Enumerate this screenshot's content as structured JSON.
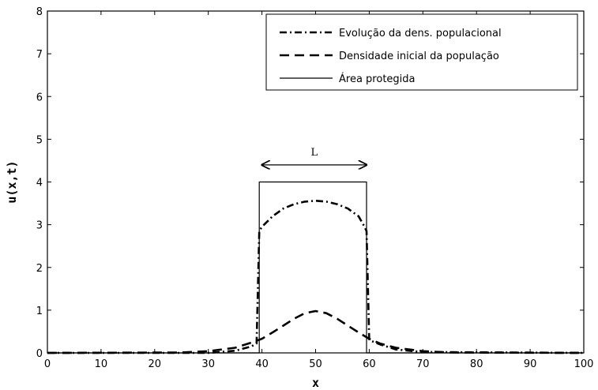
{
  "chart_data": {
    "type": "line",
    "title": "",
    "xlabel": "x",
    "ylabel": "u(x,t)",
    "xlim": [
      0,
      100
    ],
    "ylim": [
      0,
      8
    ],
    "x_ticks": [
      0,
      10,
      20,
      30,
      40,
      50,
      60,
      70,
      80,
      90,
      100
    ],
    "y_ticks": [
      0,
      1,
      2,
      3,
      4,
      5,
      6,
      7,
      8
    ],
    "grid": false,
    "legend_position": "top-right",
    "annotation": {
      "text": "L",
      "x_from": 40,
      "x_to": 59.5,
      "y": 4.4
    },
    "series": [
      {
        "name": "Evolução da dens. populacional",
        "style": "dashdot",
        "x": [
          0,
          30,
          35,
          38,
          39,
          39.5,
          40,
          42,
          44,
          46,
          48,
          50,
          52,
          54,
          56,
          58,
          59,
          59.5,
          60,
          62,
          65,
          70,
          100
        ],
        "y": [
          0,
          0,
          0.05,
          0.15,
          0.22,
          2.85,
          2.95,
          3.2,
          3.38,
          3.48,
          3.54,
          3.56,
          3.54,
          3.48,
          3.38,
          3.2,
          2.98,
          2.85,
          0.3,
          0.2,
          0.08,
          0.02,
          0
        ]
      },
      {
        "name": "Densidade inicial da população",
        "style": "dashed",
        "x": [
          0,
          25,
          30,
          35,
          38,
          40,
          42,
          44,
          46,
          48,
          50,
          52,
          54,
          56,
          58,
          60,
          62,
          65,
          70,
          75,
          100
        ],
        "y": [
          0,
          0.01,
          0.04,
          0.12,
          0.24,
          0.33,
          0.48,
          0.64,
          0.8,
          0.93,
          0.98,
          0.93,
          0.8,
          0.64,
          0.48,
          0.33,
          0.22,
          0.12,
          0.04,
          0.01,
          0
        ]
      },
      {
        "name": "Área protegida",
        "style": "solid",
        "x": [
          0,
          39.5,
          39.5,
          59.5,
          59.5,
          100
        ],
        "y": [
          0,
          0,
          4,
          4,
          0,
          0
        ]
      }
    ]
  }
}
